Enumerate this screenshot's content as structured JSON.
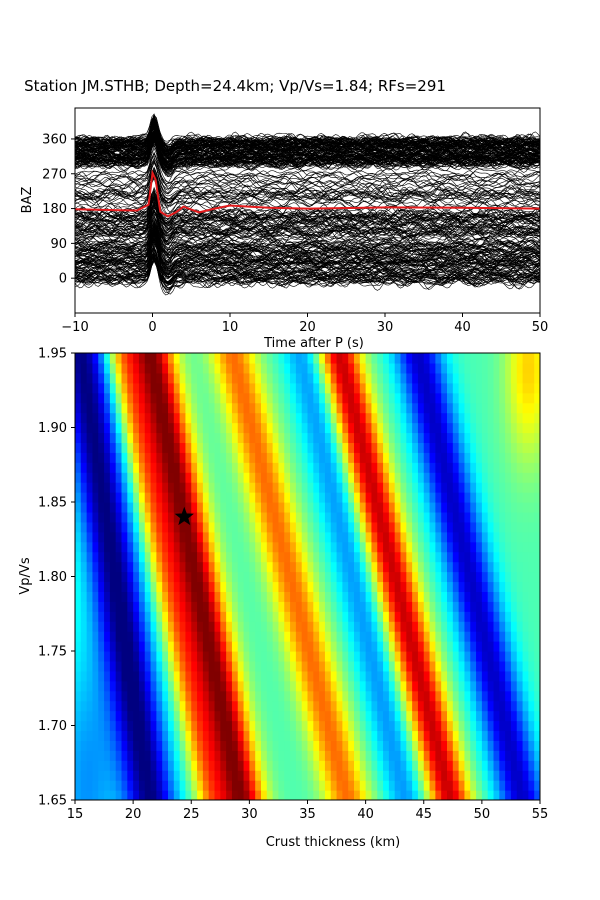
{
  "title": "Station JM.STHB; Depth=24.4km; Vp/Vs=1.84; RFs=291",
  "chart_data": [
    {
      "type": "line",
      "panel": "receiver-function-traces",
      "xlabel": "Time after P (s)",
      "ylabel": "BAZ",
      "xlim": [
        -10,
        50
      ],
      "ylim": [
        -90,
        440
      ],
      "xticks": [
        "−10",
        "0",
        "10",
        "20",
        "30",
        "40",
        "50"
      ],
      "yticks": [
        "0",
        "90",
        "180",
        "270",
        "360"
      ],
      "n_traces": 291,
      "trace_color": "#000000",
      "stack_color": "#e31a1c",
      "stack": {
        "baseline": 180,
        "x": [
          -10,
          -5,
          -2,
          -0.5,
          0,
          0.4,
          1,
          2,
          3,
          4,
          6,
          8,
          10,
          15,
          20,
          30,
          40,
          50
        ],
        "y": [
          178,
          176,
          175,
          190,
          272,
          255,
          172,
          160,
          170,
          185,
          170,
          180,
          188,
          182,
          180,
          183,
          182,
          180
        ]
      }
    },
    {
      "type": "heatmap",
      "panel": "h-kappa-stack",
      "xlabel": "Crust thickness (km)",
      "ylabel": "Vp/Vs",
      "xlim": [
        15,
        55
      ],
      "ylim": [
        1.65,
        1.95
      ],
      "xticks": [
        "15",
        "20",
        "25",
        "30",
        "35",
        "40",
        "45",
        "50",
        "55"
      ],
      "yticks": [
        "1.65",
        "1.70",
        "1.75",
        "1.80",
        "1.85",
        "1.90",
        "1.95"
      ],
      "colormap": "jet",
      "max_marker": {
        "x": 24.4,
        "y": 1.84,
        "symbol": "star",
        "color": "#000000"
      }
    }
  ]
}
